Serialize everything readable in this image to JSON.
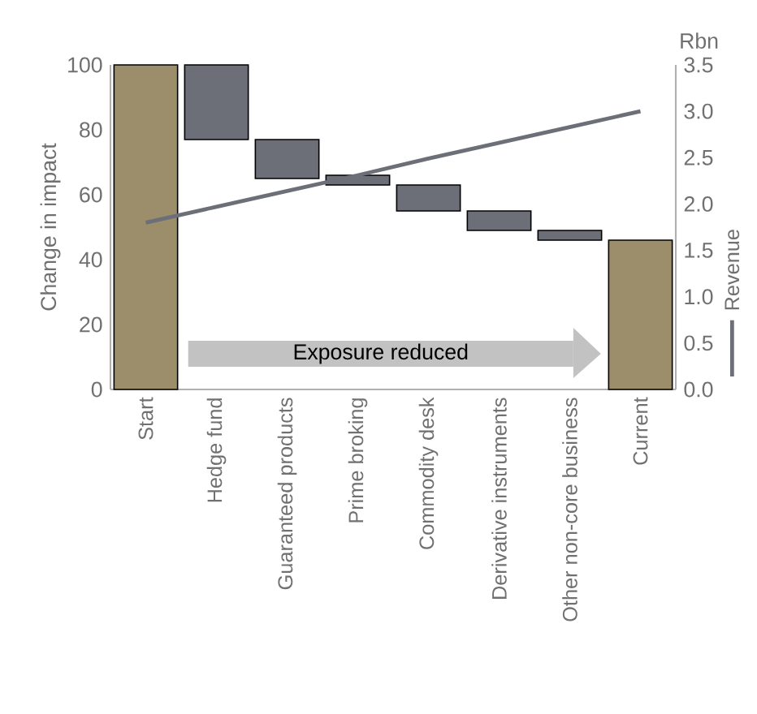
{
  "chart_data": {
    "type": "bar",
    "ylabel": "Change in impact",
    "y2label": "Rbn",
    "categories": [
      "Start",
      "Hedge fund",
      "Guaranteed products",
      "Prime broking",
      "Commodity desk",
      "Derivative instruments",
      "Other non-core business",
      "Current"
    ],
    "values": [
      100,
      -23,
      -12,
      -3,
      -8,
      -6,
      -3,
      46
    ],
    "base": [
      0,
      100,
      77,
      66,
      63,
      55,
      49,
      0
    ],
    "colors": [
      "#9c8d6b",
      "#6c6f78",
      "#6c6f78",
      "#6c6f78",
      "#6c6f78",
      "#6c6f78",
      "#6c6f78",
      "#9c8d6b"
    ],
    "series": [
      {
        "name": "Revenue",
        "type": "line",
        "axis": "y2",
        "color": "#6c6f78",
        "values": [
          1.8,
          1.97,
          2.14,
          2.31,
          2.49,
          2.66,
          2.83,
          3.0
        ]
      }
    ],
    "ylim": [
      0,
      100
    ],
    "yticks": [
      0,
      20,
      40,
      60,
      80,
      100
    ],
    "y2lim": [
      0,
      3.5
    ],
    "y2ticks": [
      {
        "value": 0,
        "label": "0.0"
      },
      {
        "value": 0.5,
        "label": "0.5"
      },
      {
        "value": 1,
        "label": "1.0"
      },
      {
        "value": 1.5,
        "label": "1.5"
      },
      {
        "value": 2,
        "label": "2.0"
      },
      {
        "value": 2.5,
        "label": "2.5"
      },
      {
        "value": 3,
        "label": "3.0"
      },
      {
        "value": 3.5,
        "label": "3.5"
      }
    ],
    "legend": "right",
    "annotations": [
      "Exposure reduced"
    ]
  }
}
